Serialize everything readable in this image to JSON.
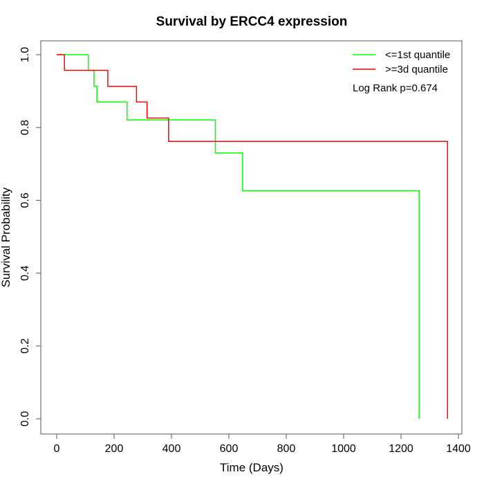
{
  "chart_data": {
    "type": "line",
    "step": true,
    "title": "Survival by ERCC4 expression",
    "xlabel": "Time (Days)",
    "ylabel": "Survival Probability",
    "xlim": [
      0,
      1400
    ],
    "ylim": [
      0,
      1.0
    ],
    "xticks": [
      0,
      200,
      400,
      600,
      800,
      1000,
      1200,
      1400
    ],
    "yticks": [
      0.0,
      0.2,
      0.4,
      0.6,
      0.8,
      1.0
    ],
    "xtick_labels": [
      "0",
      "200",
      "400",
      "600",
      "800",
      "1000",
      "1200",
      "1400"
    ],
    "ytick_labels": [
      "0.0",
      "0.2",
      "0.4",
      "0.6",
      "0.8",
      "1.0"
    ],
    "grid": false,
    "legend_position": "top-right",
    "series": [
      {
        "name": "<=1st quantile",
        "color": "#00ff00",
        "x": [
          0,
          110,
          110,
          130,
          130,
          140,
          140,
          245,
          245,
          553,
          553,
          648,
          648,
          1263,
          1263
        ],
        "y": [
          1.0,
          1.0,
          0.957,
          0.957,
          0.913,
          0.913,
          0.87,
          0.87,
          0.821,
          0.821,
          0.73,
          0.73,
          0.626,
          0.626,
          0.0
        ]
      },
      {
        "name": ">=3d quantile",
        "color": "#ff0000",
        "x": [
          0,
          27,
          27,
          178,
          178,
          278,
          278,
          315,
          315,
          390,
          390,
          1362,
          1362
        ],
        "y": [
          1.0,
          1.0,
          0.957,
          0.957,
          0.913,
          0.913,
          0.87,
          0.87,
          0.826,
          0.826,
          0.762,
          0.762,
          0.0
        ]
      }
    ],
    "annotation": "Log Rank p=0.674"
  }
}
